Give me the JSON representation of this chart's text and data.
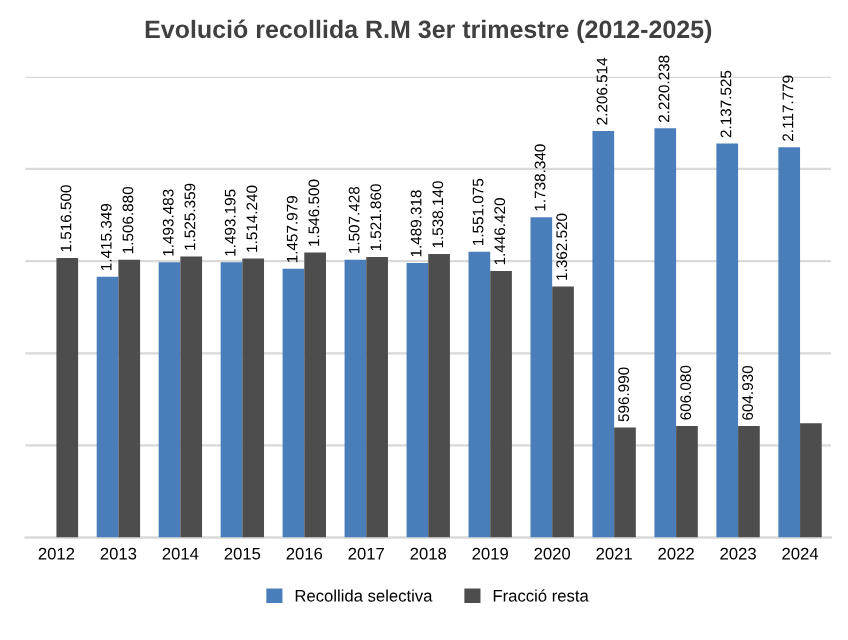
{
  "chart_data": {
    "type": "bar",
    "title": "Evolució recollida R.M 3er trimestre (2012-2025)",
    "categories": [
      "2012",
      "2013",
      "2014",
      "2015",
      "2016",
      "2017",
      "2018",
      "2019",
      "2020",
      "2021",
      "2022",
      "2023",
      "2024"
    ],
    "series": [
      {
        "name": "Recollida selectiva",
        "color": "#4a7ebb",
        "values": [
          null,
          1415349,
          1493483,
          1493195,
          1457979,
          1507428,
          1489318,
          1551075,
          1738340,
          2206514,
          2220238,
          2137525,
          2117779
        ],
        "value_labels": [
          null,
          "1.415.349",
          "1.493.483",
          "1.493.195",
          "1.457.979",
          "1.507.428",
          "1.489.318",
          "1.551.075",
          "1.738.340",
          "2.206.514",
          "2.220.238",
          "2.137.525",
          "2.117.779"
        ]
      },
      {
        "name": "Fracció resta",
        "color": "#4d4d4d",
        "values": [
          1516500,
          1506880,
          1525359,
          1514240,
          1546500,
          1521860,
          1538140,
          1446420,
          1362520,
          596990,
          606080,
          604930,
          620000
        ],
        "value_labels": [
          "1.516.500",
          "1.506.880",
          "1.525.359",
          "1.514.240",
          "1.546.500",
          "1.521.860",
          "1.538.140",
          "1.446.420",
          "1.362.520",
          "596.990",
          "606.080",
          "604.930",
          null
        ]
      }
    ],
    "ylim": [
      0,
      2500000
    ],
    "yticks": [
      {
        "value": 0,
        "label": null
      },
      {
        "value": 500000,
        "label": null
      },
      {
        "value": 1000000,
        "label": null
      },
      {
        "value": 1500000,
        "label": null
      },
      {
        "value": 2000000,
        "label": null
      },
      {
        "value": 2500000,
        "label": null
      }
    ],
    "tick_labels": "x",
    "grid": "y",
    "legend": "bottom"
  }
}
